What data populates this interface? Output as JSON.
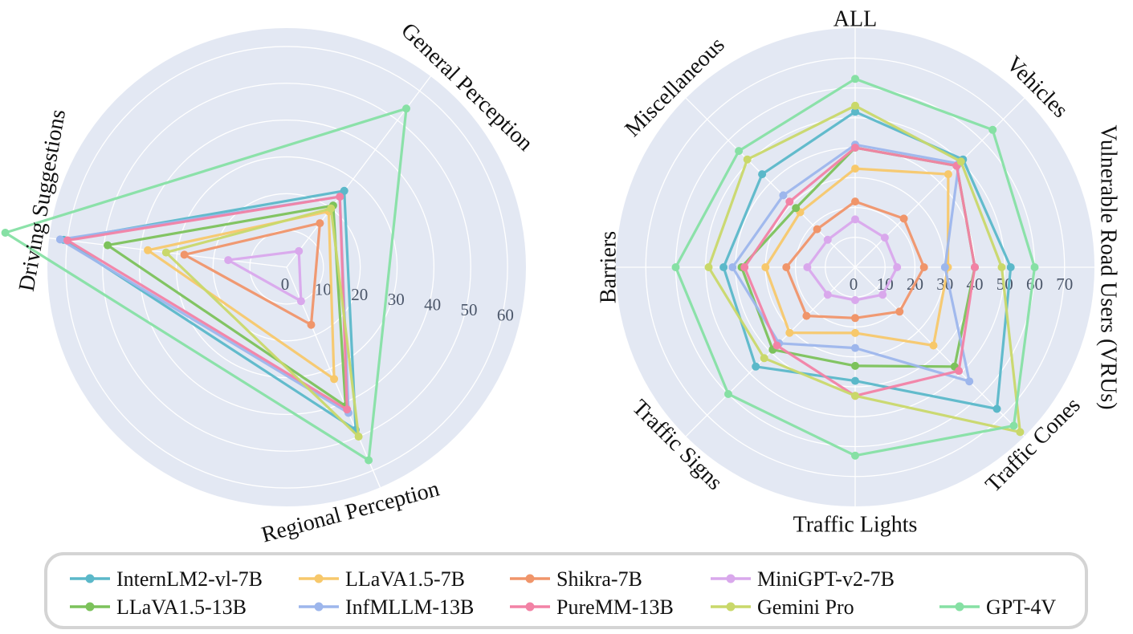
{
  "chart_data": [
    {
      "type": "radar",
      "axes": [
        "General Perception",
        "Regional Perception",
        "Driving Suggestions"
      ],
      "rticks": [
        "0",
        "10",
        "20",
        "30",
        "40",
        "50",
        "60"
      ],
      "rlim": [
        0,
        65
      ],
      "grid": true,
      "series": [
        {
          "name": "InternLM2-vl-7B",
          "values": [
            26,
            48,
            61
          ]
        },
        {
          "name": "LLaVA1.5-7B",
          "values": [
            19,
            33,
            38
          ]
        },
        {
          "name": "Shikra-7B",
          "values": [
            15,
            17,
            28
          ]
        },
        {
          "name": "MiniGPT-v2-7B",
          "values": [
            5.5,
            10,
            16
          ]
        },
        {
          "name": "LLaVA1.5-13B",
          "values": [
            21,
            41,
            49
          ]
        },
        {
          "name": "InfMLLM-13B",
          "values": [
            24,
            43,
            62
          ]
        },
        {
          "name": "PureMM-13B",
          "values": [
            24,
            42,
            60
          ]
        },
        {
          "name": "Gemini Pro",
          "values": [
            20,
            50,
            33
          ]
        },
        {
          "name": "GPT-4V",
          "values": [
            54,
            57,
            77
          ]
        }
      ]
    },
    {
      "type": "radar",
      "axes": [
        "ALL",
        "Vehicles",
        "Vulnerable Road Users (VRUs)",
        "Traffic Cones",
        "Traffic Lights",
        "Traffic Signs",
        "Barriers",
        "Miscellaneous"
      ],
      "rticks": [
        "0",
        "10",
        "20",
        "30",
        "40",
        "50",
        "60",
        "70"
      ],
      "rlim": [
        0,
        80
      ],
      "grid": true,
      "series": [
        {
          "name": "InternLM2-vl-7B",
          "values": [
            52,
            51,
            52,
            67,
            38,
            47,
            44,
            44
          ]
        },
        {
          "name": "LLaVA1.5-7B",
          "values": [
            33,
            44,
            31,
            37,
            22,
            31,
            30,
            26
          ]
        },
        {
          "name": "Shikra-7B",
          "values": [
            22,
            23,
            23,
            21,
            17,
            23,
            23,
            18
          ]
        },
        {
          "name": "MiniGPT-v2-7B",
          "values": [
            16,
            14,
            14,
            13,
            11,
            13,
            16,
            13
          ]
        },
        {
          "name": "LLaVA1.5-13B",
          "values": [
            40,
            48,
            40,
            47,
            33,
            39,
            38,
            28
          ]
        },
        {
          "name": "InfMLLM-13B",
          "values": [
            41,
            49,
            30,
            54,
            27,
            36,
            41,
            34
          ]
        },
        {
          "name": "PureMM-13B",
          "values": [
            40,
            48,
            40,
            49,
            43,
            37,
            37,
            31
          ]
        },
        {
          "name": "Gemini Pro",
          "values": [
            54,
            50,
            49,
            78,
            43,
            43,
            49,
            51
          ]
        },
        {
          "name": "GPT-4V",
          "values": [
            63,
            65,
            60,
            75,
            63,
            60,
            60,
            55
          ]
        }
      ]
    }
  ],
  "legend": {
    "placement": "bottom",
    "items": [
      {
        "label": "InternLM2-vl-7B",
        "color": "#5bb8c9"
      },
      {
        "label": "LLaVA1.5-7B",
        "color": "#f7c86b"
      },
      {
        "label": "Shikra-7B",
        "color": "#f0956a"
      },
      {
        "label": "MiniGPT-v2-7B",
        "color": "#d9a8ec"
      },
      {
        "label": "LLaVA1.5-13B",
        "color": "#7cc25b"
      },
      {
        "label": "InfMLLM-13B",
        "color": "#9db6ec"
      },
      {
        "label": "PureMM-13B",
        "color": "#f282a5"
      },
      {
        "label": "Gemini Pro",
        "color": "#c9d86a"
      },
      {
        "label": "GPT-4V",
        "color": "#86e0a4"
      }
    ]
  },
  "colors": {
    "polar_background": "#e3e8f3",
    "grid": "#ffffff",
    "legend_border": "#d4d4d4"
  }
}
